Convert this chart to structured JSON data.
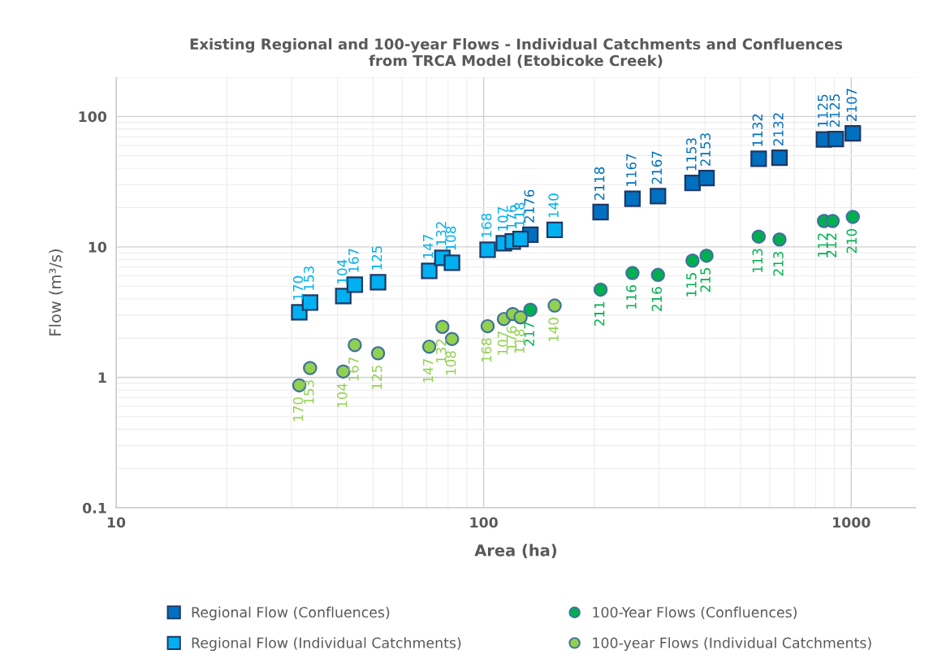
{
  "chart_data": {
    "type": "scatter",
    "title": "Existing Regional and 100-year Flows - Individual Catchments and Confluences\nfrom TRCA Model (Etobicoke Creek)",
    "xlabel": "Area (ha)",
    "ylabel": "Flow (m³/s)",
    "log": "xy",
    "xlim": [
      10,
      1500
    ],
    "ylim": [
      0.1,
      200
    ],
    "xticks": [
      10,
      100,
      1000
    ],
    "yticks": [
      0.1,
      1,
      10,
      100
    ],
    "grid": true,
    "legend": "bottom",
    "series": [
      {
        "name": "Regional Flow (Confluences)",
        "color": "#0070c0",
        "marker": "square",
        "x": [
          134,
          208,
          254,
          298,
          370,
          404,
          560,
          638,
          843,
          908,
          1010
        ],
        "values": [
          12.4,
          18.5,
          23.4,
          24.5,
          30.9,
          33.7,
          47.4,
          48.3,
          66.7,
          67.2,
          74.3
        ]
      },
      {
        "name": "Regional Flow (Individual Catchments)",
        "color": "#00b0f0",
        "marker": "square",
        "x": [
          31.5,
          33.7,
          41.5,
          44.6,
          51.6,
          71.1,
          77.2,
          82,
          102.5,
          113.5,
          120,
          126,
          156
        ],
        "values": [
          3.15,
          3.74,
          4.2,
          5.13,
          5.36,
          6.55,
          8.24,
          7.56,
          9.5,
          10.67,
          11.0,
          11.5,
          13.5
        ]
      },
      {
        "name": "100-Year Flows (Confluences)",
        "color": "#00b050",
        "marker": "circle",
        "x": [
          134,
          208,
          254,
          298,
          370,
          404,
          560,
          638,
          843,
          890,
          1010
        ],
        "values": [
          3.3,
          4.71,
          6.3,
          6.1,
          7.85,
          8.57,
          12.0,
          11.4,
          15.8,
          15.8,
          17.0
        ]
      },
      {
        "name": "100-year Flows (Individual Catchments)",
        "color": "#92d050",
        "marker": "circle",
        "x": [
          31.5,
          33.7,
          41.5,
          44.6,
          51.6,
          71.1,
          77.2,
          82,
          102.5,
          113.5,
          120,
          126,
          156
        ],
        "values": [
          0.87,
          1.18,
          1.11,
          1.77,
          1.53,
          1.72,
          2.44,
          1.97,
          2.47,
          2.8,
          3.06,
          2.89,
          3.55
        ]
      }
    ],
    "annotations": [
      {
        "text": "2176",
        "x": 134,
        "y": 12.4
      },
      {
        "text": "2118",
        "x": 208,
        "y": 18.5
      },
      {
        "text": "1167",
        "x": 254,
        "y": 23.4
      },
      {
        "text": "2167",
        "x": 298,
        "y": 24.5
      },
      {
        "text": "1153",
        "x": 370,
        "y": 30.9
      },
      {
        "text": "2153",
        "x": 404,
        "y": 33.7
      },
      {
        "text": "1132",
        "x": 560,
        "y": 47.4
      },
      {
        "text": "2132",
        "x": 638,
        "y": 48.3
      },
      {
        "text": "1125",
        "x": 843,
        "y": 66.7
      },
      {
        "text": "2125",
        "x": 908,
        "y": 67.2
      },
      {
        "text": "2107",
        "x": 1010,
        "y": 74.3
      },
      {
        "text": "170",
        "x": 31.5,
        "y": 3.15
      },
      {
        "text": "153",
        "x": 33.7,
        "y": 3.74
      },
      {
        "text": "104",
        "x": 41.5,
        "y": 4.2
      },
      {
        "text": "167",
        "x": 44.6,
        "y": 5.13
      },
      {
        "text": "125",
        "x": 51.6,
        "y": 5.36
      },
      {
        "text": "147",
        "x": 71.1,
        "y": 6.55
      },
      {
        "text": "132",
        "x": 77.2,
        "y": 8.24
      },
      {
        "text": "108",
        "x": 82,
        "y": 7.56
      },
      {
        "text": "168",
        "x": 102.5,
        "y": 9.5
      },
      {
        "text": "107",
        "x": 113.5,
        "y": 10.67
      },
      {
        "text": "176",
        "x": 120,
        "y": 11.0
      },
      {
        "text": "118",
        "x": 126,
        "y": 11.5
      },
      {
        "text": "140",
        "x": 156,
        "y": 13.5
      },
      {
        "text": "217",
        "x": 134,
        "y": 3.3
      },
      {
        "text": "211",
        "x": 208,
        "y": 4.71
      },
      {
        "text": "116",
        "x": 254,
        "y": 6.3
      },
      {
        "text": "216",
        "x": 298,
        "y": 6.1
      },
      {
        "text": "115",
        "x": 370,
        "y": 7.85
      },
      {
        "text": "215",
        "x": 404,
        "y": 8.57
      },
      {
        "text": "113",
        "x": 560,
        "y": 12.0
      },
      {
        "text": "213",
        "x": 638,
        "y": 11.4
      },
      {
        "text": "112",
        "x": 843,
        "y": 15.8
      },
      {
        "text": "212",
        "x": 890,
        "y": 15.8
      },
      {
        "text": "210",
        "x": 1010,
        "y": 17.0
      },
      {
        "text": "170",
        "x": 31.5,
        "y": 0.87
      },
      {
        "text": "153",
        "x": 33.7,
        "y": 1.18
      },
      {
        "text": "104",
        "x": 41.5,
        "y": 1.11
      },
      {
        "text": "167",
        "x": 44.6,
        "y": 1.77
      },
      {
        "text": "125",
        "x": 51.6,
        "y": 1.53
      },
      {
        "text": "147",
        "x": 71.1,
        "y": 1.72
      },
      {
        "text": "132",
        "x": 77.2,
        "y": 2.44
      },
      {
        "text": "108",
        "x": 82,
        "y": 1.97
      },
      {
        "text": "168",
        "x": 102.5,
        "y": 2.47
      },
      {
        "text": "107",
        "x": 113.5,
        "y": 2.8
      },
      {
        "text": "176",
        "x": 120,
        "y": 3.06
      },
      {
        "text": "118",
        "x": 126,
        "y": 2.89
      },
      {
        "text": "140",
        "x": 156,
        "y": 3.55
      }
    ]
  }
}
